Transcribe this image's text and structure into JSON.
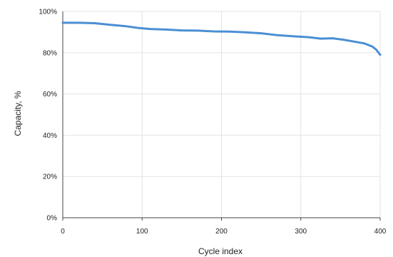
{
  "chart_data": {
    "type": "line",
    "xlabel": "Cycle index",
    "ylabel": "Capacity, %",
    "xlim": [
      0,
      400
    ],
    "ylim": [
      0,
      100
    ],
    "x_ticks": [
      "0",
      "100",
      "200",
      "300",
      "400"
    ],
    "y_ticks": [
      "0%",
      "20%",
      "40%",
      "60%",
      "80%",
      "100%"
    ],
    "grid": true,
    "series": [
      {
        "color": "#4a8fd4",
        "points": [
          [
            0,
            94.5
          ],
          [
            20,
            94.5
          ],
          [
            40,
            94.3
          ],
          [
            60,
            93.5
          ],
          [
            80,
            92.8
          ],
          [
            95,
            92.0
          ],
          [
            110,
            91.5
          ],
          [
            130,
            91.2
          ],
          [
            150,
            90.8
          ],
          [
            170,
            90.7
          ],
          [
            190,
            90.3
          ],
          [
            210,
            90.2
          ],
          [
            230,
            89.9
          ],
          [
            250,
            89.4
          ],
          [
            270,
            88.5
          ],
          [
            290,
            88.0
          ],
          [
            310,
            87.5
          ],
          [
            325,
            86.8
          ],
          [
            340,
            87.0
          ],
          [
            355,
            86.2
          ],
          [
            370,
            85.2
          ],
          [
            380,
            84.5
          ],
          [
            390,
            83.0
          ],
          [
            395,
            81.5
          ],
          [
            400,
            79.0
          ]
        ]
      }
    ]
  }
}
